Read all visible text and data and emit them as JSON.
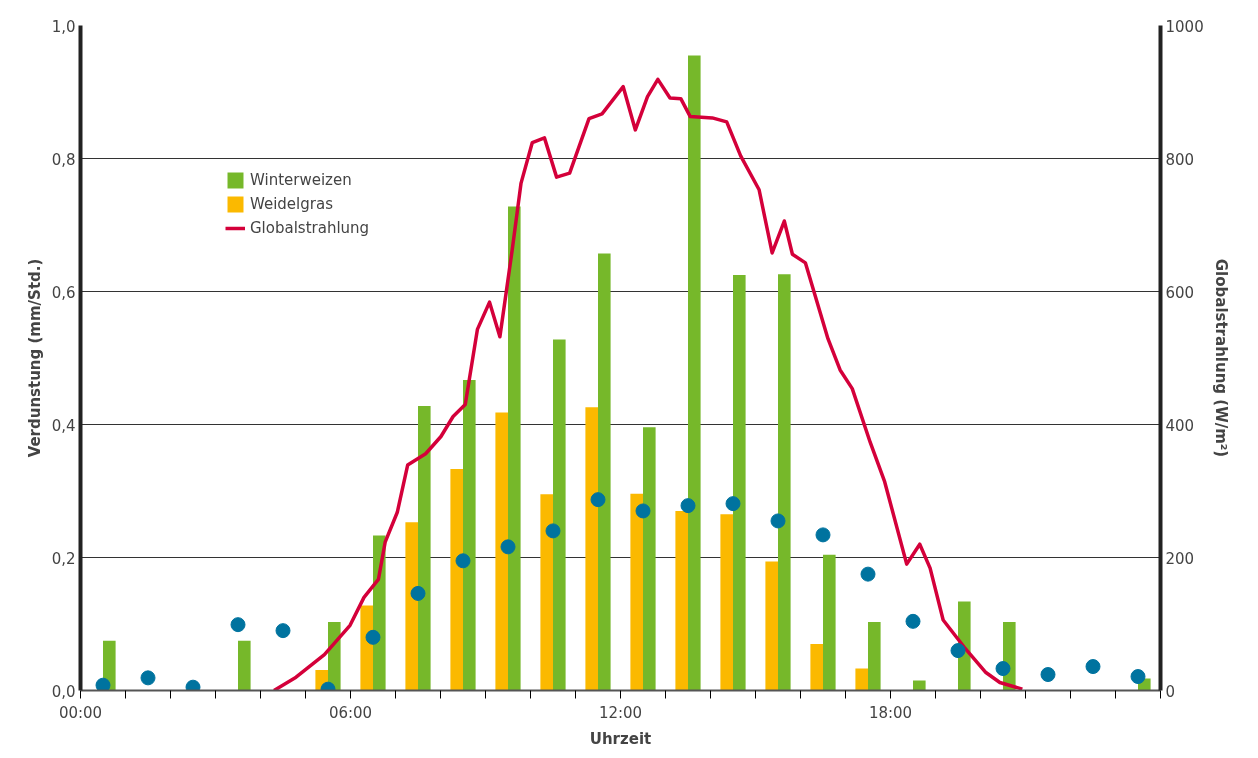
{
  "chart_data": {
    "type": "bar",
    "xlabel": "Uhrzeit",
    "ylabel": "Verdunstung (mm/Std.)",
    "y2label": "Globalstrahlung (W/m²)",
    "x": [
      0.5,
      1.5,
      2.5,
      3.5,
      4.5,
      5.5,
      6.5,
      7.5,
      8.5,
      9.5,
      10.5,
      11.5,
      12.5,
      13.5,
      14.5,
      15.5,
      16.5,
      17.5,
      18.5,
      19.5,
      20.5,
      21.5,
      22.5,
      23.5
    ],
    "xlim": [
      0,
      24
    ],
    "ylim": [
      0,
      1
    ],
    "y2lim": [
      0,
      1000
    ],
    "xticks": [
      {
        "value": 0,
        "label": "00:00"
      },
      {
        "value": 1,
        "label": null
      },
      {
        "value": 2,
        "label": null
      },
      {
        "value": 3,
        "label": null
      },
      {
        "value": 4,
        "label": null
      },
      {
        "value": 5,
        "label": null
      },
      {
        "value": 6,
        "label": "06:00"
      },
      {
        "value": 7,
        "label": null
      },
      {
        "value": 8,
        "label": null
      },
      {
        "value": 9,
        "label": null
      },
      {
        "value": 10,
        "label": null
      },
      {
        "value": 11,
        "label": null
      },
      {
        "value": 12,
        "label": "12:00"
      },
      {
        "value": 13,
        "label": null
      },
      {
        "value": 14,
        "label": null
      },
      {
        "value": 15,
        "label": null
      },
      {
        "value": 16,
        "label": null
      },
      {
        "value": 17,
        "label": null
      },
      {
        "value": 18,
        "label": "18:00"
      },
      {
        "value": 19,
        "label": null
      },
      {
        "value": 20,
        "label": null
      },
      {
        "value": 21,
        "label": null
      },
      {
        "value": 22,
        "label": null
      },
      {
        "value": 23,
        "label": null
      },
      {
        "value": 24,
        "label": null
      }
    ],
    "yticks": [
      {
        "value": 0,
        "label": "0,0"
      },
      {
        "value": 0.2,
        "label": "0,2"
      },
      {
        "value": 0.4,
        "label": "0,4"
      },
      {
        "value": 0.6,
        "label": "0,6"
      },
      {
        "value": 0.8,
        "label": "0,8"
      },
      {
        "value": 1,
        "label": "1,0"
      }
    ],
    "y2ticks": [
      0,
      200,
      400,
      600,
      800,
      1000
    ],
    "grid": "y",
    "legend": "top left",
    "series": [
      {
        "name": "Weidelgras",
        "color": "#fbb900",
        "values": [
          null,
          null,
          null,
          null,
          null,
          0.031,
          0.128,
          0.253,
          0.333,
          0.418,
          0.295,
          0.426,
          0.296,
          0.27,
          0.265,
          0.194,
          0.07,
          0.033,
          null,
          null,
          null,
          null,
          null,
          null
        ]
      },
      {
        "name": "Winterweizen",
        "color": "#76b82a",
        "values": [
          0.075,
          null,
          null,
          0.075,
          null,
          0.103,
          0.233,
          0.428,
          0.467,
          0.728,
          0.528,
          0.657,
          0.396,
          0.955,
          0.625,
          0.626,
          0.204,
          0.103,
          0.015,
          0.134,
          0.103,
          null,
          null,
          0.018
        ]
      },
      {
        "type": "scatter",
        "color": "#00739f",
        "marker": "circle",
        "values": [
          0.008,
          0.019,
          0.005,
          0.099,
          0.09,
          0.002,
          0.08,
          0.146,
          0.195,
          0.216,
          0.24,
          0.287,
          0.27,
          0.278,
          0.281,
          0.255,
          0.234,
          0.175,
          0.104,
          0.06,
          0.033,
          0.024,
          0.036,
          0.021
        ]
      },
      {
        "name": "Globalstrahlung",
        "type": "line",
        "axis": "y2",
        "color": "#d4003a",
        "line_style": "solid",
        "x": [
          4.3,
          4.79,
          5.42,
          5.99,
          6.3,
          6.62,
          6.77,
          7.04,
          7.27,
          7.67,
          8.01,
          8.28,
          8.55,
          8.82,
          9.09,
          9.32,
          9.59,
          9.79,
          10.04,
          10.31,
          10.58,
          10.87,
          11.3,
          11.59,
          12.06,
          12.33,
          12.6,
          12.83,
          13.1,
          13.34,
          13.55,
          14.04,
          14.36,
          14.67,
          15.08,
          15.37,
          15.64,
          15.82,
          16.11,
          16.61,
          16.88,
          17.15,
          17.55,
          17.87,
          18.36,
          18.65,
          18.88,
          19.17,
          19.64,
          20.12,
          20.43,
          20.93
        ],
        "values": [
          0,
          20,
          54,
          98,
          140,
          167,
          223,
          268,
          339,
          356,
          382,
          412,
          430,
          543,
          584,
          532,
          661,
          763,
          824,
          831,
          772,
          778,
          860,
          867,
          908,
          843,
          893,
          919,
          891,
          890,
          863,
          861,
          855,
          804,
          753,
          658,
          706,
          656,
          643,
          529,
          482,
          454,
          373,
          314,
          190,
          220,
          184,
          106,
          65,
          27,
          12,
          2
        ]
      }
    ]
  }
}
